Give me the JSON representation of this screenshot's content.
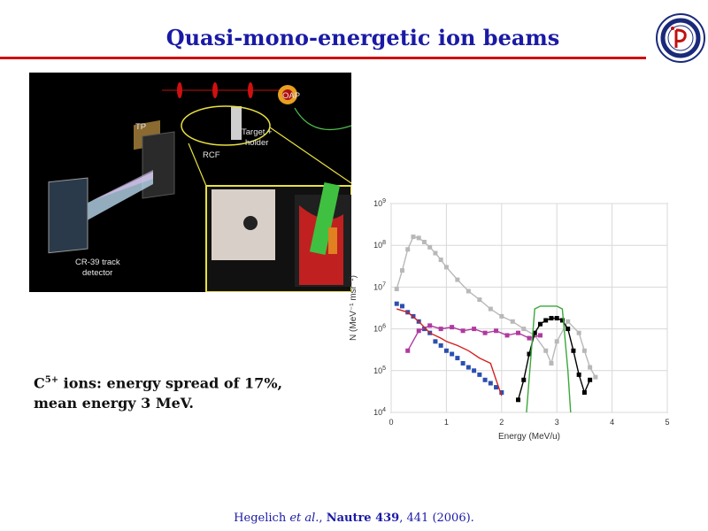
{
  "slide": {
    "title": "Quasi-mono-energetic ion beams",
    "caption_species": "C",
    "caption_charge": "5+",
    "caption_line1_rest": " ions: energy spread of 17%,",
    "caption_line2": "mean energy 3 MeV.",
    "citation": {
      "authors": "Hegelich ",
      "etal": "et al.",
      "sep": ", ",
      "journal": "Nautre 439",
      "pages": ", 441 (2006)."
    },
    "accent_colors": {
      "title": "#1a1aa6",
      "rule": "#d01010"
    }
  },
  "photo": {
    "labels": {
      "oap": "OAP",
      "tp": "TP",
      "target_1": "Target +",
      "target_2": "holder",
      "rcf": "RCF",
      "detector_1": "CR-39 track",
      "detector_2": "detector"
    }
  },
  "chart_data": {
    "type": "scatter",
    "title": "",
    "xlabel": "Energy (MeV/u)",
    "ylabel": "N (MeV⁻¹ msr⁻¹)",
    "xlim": [
      0,
      5
    ],
    "ylim": [
      10000,
      1000000000
    ],
    "y_scale": "log",
    "grid": true,
    "x_ticks": [
      "0",
      "1",
      "2",
      "3",
      "4",
      "5"
    ],
    "y_ticks": [
      {
        "base": "10",
        "exp": "4",
        "value": 10000
      },
      {
        "base": "10",
        "exp": "5",
        "value": 100000
      },
      {
        "base": "10",
        "exp": "6",
        "value": 1000000
      },
      {
        "base": "10",
        "exp": "7",
        "value": 10000000
      },
      {
        "base": "10",
        "exp": "8",
        "value": 100000000
      },
      {
        "base": "10",
        "exp": "9",
        "value": 1000000000
      }
    ],
    "series": [
      {
        "color": "#b8b8b8",
        "kind": "markers-line",
        "x": [
          0.1,
          0.2,
          0.3,
          0.4,
          0.5,
          0.6,
          0.7,
          0.8,
          0.9,
          1.0,
          1.2,
          1.4,
          1.6,
          1.8,
          2.0,
          2.2,
          2.4,
          2.6,
          2.8,
          2.9,
          3.0,
          3.2,
          3.4,
          3.5,
          3.6,
          3.7
        ],
        "y": [
          9000000,
          25000000,
          80000000,
          160000000,
          150000000,
          120000000,
          90000000,
          65000000,
          45000000,
          30000000,
          15000000,
          8000000,
          5000000,
          3000000,
          2000000,
          1500000,
          1000000,
          700000,
          300000,
          150000,
          500000,
          1500000,
          800000,
          300000,
          120000,
          70000
        ]
      },
      {
        "color": "#2b4fb0",
        "kind": "markers",
        "x": [
          0.1,
          0.2,
          0.3,
          0.4,
          0.5,
          0.6,
          0.7,
          0.8,
          0.9,
          1.0,
          1.1,
          1.2,
          1.3,
          1.4,
          1.5,
          1.6,
          1.7,
          1.8,
          1.9,
          2.0
        ],
        "y": [
          4000000,
          3500000,
          2500000,
          2000000,
          1500000,
          1000000,
          800000,
          500000,
          400000,
          300000,
          250000,
          200000,
          150000,
          120000,
          100000,
          80000,
          60000,
          50000,
          40000,
          30000
        ]
      },
      {
        "color": "#b03aa0",
        "kind": "markers-line",
        "x": [
          0.3,
          0.5,
          0.7,
          0.9,
          1.1,
          1.3,
          1.5,
          1.7,
          1.9,
          2.1,
          2.3,
          2.5,
          2.7
        ],
        "y": [
          300000,
          900000,
          1200000,
          1000000,
          1100000,
          900000,
          1000000,
          800000,
          900000,
          700000,
          800000,
          600000,
          700000
        ]
      },
      {
        "color": "#d42020",
        "kind": "line",
        "x": [
          0.1,
          0.3,
          0.5,
          0.7,
          0.9,
          1.0,
          1.2,
          1.4,
          1.6,
          1.8,
          1.9,
          2.0
        ],
        "y": [
          3000000,
          2500000,
          1500000,
          800000,
          600000,
          500000,
          400000,
          300000,
          200000,
          150000,
          60000,
          25000
        ]
      },
      {
        "color": "#000000",
        "kind": "markers-line",
        "x": [
          2.3,
          2.4,
          2.5,
          2.6,
          2.7,
          2.8,
          2.9,
          3.0,
          3.1,
          3.2,
          3.3,
          3.4,
          3.5,
          3.6
        ],
        "y": [
          20000,
          60000,
          250000,
          800000,
          1300000,
          1600000,
          1800000,
          1800000,
          1600000,
          1000000,
          300000,
          80000,
          30000,
          60000
        ]
      },
      {
        "color": "#3aa83a",
        "kind": "line",
        "x": [
          2.45,
          2.6,
          2.7,
          3.0,
          3.1,
          3.2,
          3.25
        ],
        "y": [
          10000,
          3000000,
          3500000,
          3500000,
          3000000,
          100000,
          10000
        ]
      }
    ]
  }
}
